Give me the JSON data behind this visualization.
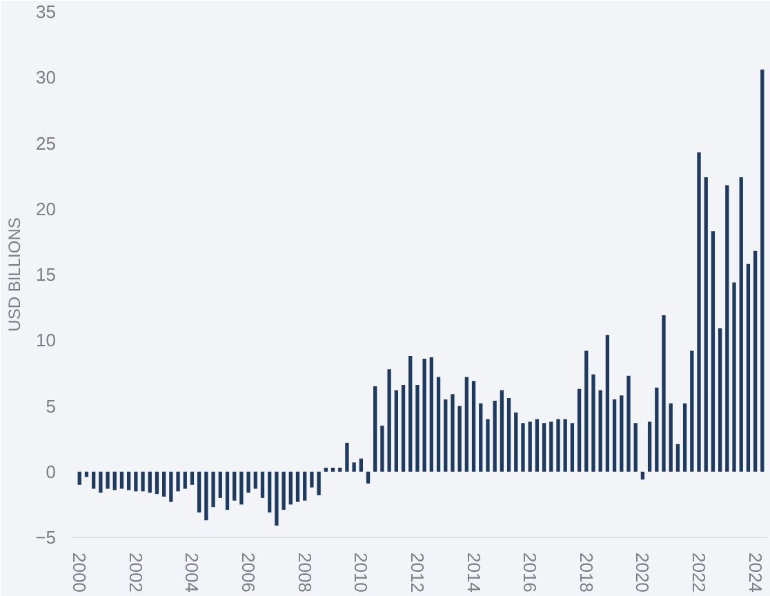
{
  "chart_data": {
    "type": "bar",
    "ylabel": "USD BILLIONS",
    "color": "#1f3a5f",
    "x": [
      2000,
      2000.25,
      2000.5,
      2000.75,
      2001,
      2001.25,
      2001.5,
      2001.75,
      2002,
      2002.25,
      2002.5,
      2002.75,
      2003,
      2003.25,
      2003.5,
      2003.75,
      2004,
      2004.25,
      2004.5,
      2004.75,
      2005,
      2005.25,
      2005.5,
      2005.75,
      2006,
      2006.25,
      2006.5,
      2006.75,
      2007,
      2007.25,
      2007.5,
      2007.75,
      2008,
      2008.25,
      2008.5,
      2008.75,
      2009,
      2009.25,
      2009.5,
      2009.75,
      2010,
      2010.25,
      2010.5,
      2010.75,
      2011,
      2011.25,
      2011.5,
      2011.75,
      2012,
      2012.25,
      2012.5,
      2012.75,
      2013,
      2013.25,
      2013.5,
      2013.75,
      2014,
      2014.25,
      2014.5,
      2014.75,
      2015,
      2015.25,
      2015.5,
      2015.75,
      2016,
      2016.25,
      2016.5,
      2016.75,
      2017,
      2017.25,
      2017.5,
      2017.75,
      2018,
      2018.25,
      2018.5,
      2018.75,
      2019,
      2019.25,
      2019.5,
      2019.75,
      2020,
      2020.25,
      2020.5,
      2020.75,
      2021,
      2021.25,
      2021.5,
      2021.75,
      2022,
      2022.25,
      2022.5,
      2022.75,
      2023,
      2023.25,
      2023.5,
      2023.75,
      2024,
      2024.25
    ],
    "values": [
      -1.0,
      -0.4,
      -1.3,
      -1.6,
      -1.3,
      -1.4,
      -1.3,
      -1.4,
      -1.5,
      -1.5,
      -1.6,
      -1.7,
      -1.9,
      -2.3,
      -1.5,
      -1.3,
      -1.0,
      -3.1,
      -3.7,
      -2.7,
      -2.0,
      -2.9,
      -2.2,
      -2.5,
      -1.6,
      -1.3,
      -2.0,
      -3.1,
      -4.1,
      -2.9,
      -2.5,
      -2.3,
      -2.2,
      -1.2,
      -1.8,
      0.3,
      0.3,
      0.3,
      2.2,
      0.7,
      1.0,
      -0.9,
      6.5,
      3.5,
      7.8,
      6.2,
      6.6,
      8.8,
      6.6,
      8.6,
      8.7,
      7.2,
      5.5,
      5.9,
      5.0,
      7.2,
      6.9,
      5.2,
      4.0,
      5.4,
      6.2,
      5.6,
      4.5,
      3.7,
      3.8,
      4.0,
      3.7,
      3.8,
      4.0,
      4.0,
      3.7,
      6.3,
      9.2,
      7.4,
      6.2,
      10.4,
      5.5,
      5.8,
      7.3,
      3.7,
      -0.6,
      3.8,
      6.4,
      11.9,
      5.2,
      2.1,
      5.2,
      9.2,
      24.3,
      22.4,
      18.3,
      10.9,
      21.8,
      14.4,
      22.4,
      15.8,
      16.8,
      30.6
    ],
    "xlim": [
      1999.7,
      2024.45
    ],
    "xticks": [
      2000,
      2002,
      2004,
      2006,
      2008,
      2010,
      2012,
      2014,
      2016,
      2018,
      2020,
      2022,
      2024
    ],
    "ylim": [
      -5,
      35
    ],
    "yticks": [
      -5,
      0,
      5,
      10,
      15,
      20,
      25,
      30,
      35
    ],
    "grid": false
  }
}
